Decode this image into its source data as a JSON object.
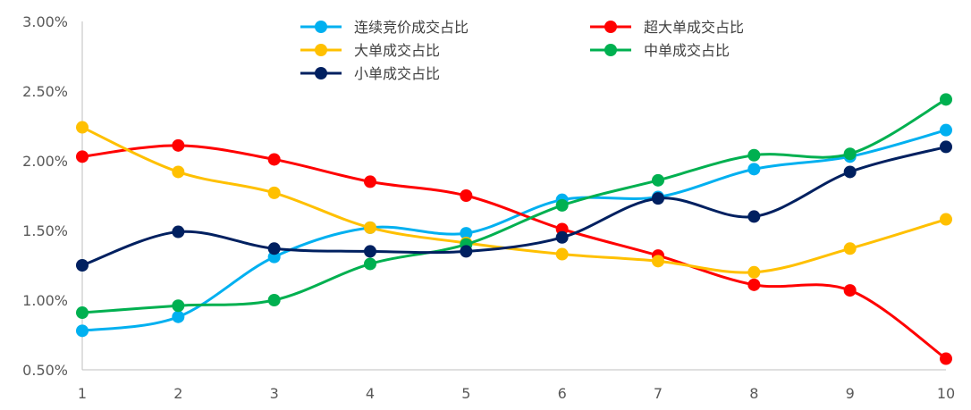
{
  "chart_data": {
    "type": "line",
    "title": "",
    "xlabel": "",
    "ylabel": "",
    "x": [
      1,
      2,
      3,
      4,
      5,
      6,
      7,
      8,
      9,
      10
    ],
    "ylim": [
      0.005,
      0.03
    ],
    "y_ticks": [
      "0.50%",
      "1.00%",
      "1.50%",
      "2.00%",
      "2.50%",
      "3.00%"
    ],
    "grid": false,
    "legend_position": "top-center",
    "series": [
      {
        "name": "连续竞价成交占比",
        "color": "#00B0F0",
        "values": [
          0.0078,
          0.0088,
          0.0131,
          0.0152,
          0.0148,
          0.0172,
          0.0174,
          0.0194,
          0.0203,
          0.0222
        ]
      },
      {
        "name": "超大单成交占比",
        "color": "#FF0000",
        "values": [
          0.0203,
          0.0211,
          0.0201,
          0.0185,
          0.0175,
          0.0151,
          0.0132,
          0.0111,
          0.0107,
          0.0058
        ]
      },
      {
        "name": "大单成交占比",
        "color": "#FFC000",
        "values": [
          0.0224,
          0.0192,
          0.0177,
          0.0152,
          0.0141,
          0.0133,
          0.0128,
          0.012,
          0.0137,
          0.0158
        ]
      },
      {
        "name": "中单成交占比",
        "color": "#00B050",
        "values": [
          0.0091,
          0.0096,
          0.01,
          0.0126,
          0.014,
          0.0168,
          0.0186,
          0.0204,
          0.0205,
          0.0244
        ]
      },
      {
        "name": "小单成交占比",
        "color": "#002060",
        "values": [
          0.0125,
          0.0149,
          0.0137,
          0.0135,
          0.0135,
          0.0145,
          0.0173,
          0.016,
          0.0192,
          0.021
        ]
      }
    ]
  }
}
